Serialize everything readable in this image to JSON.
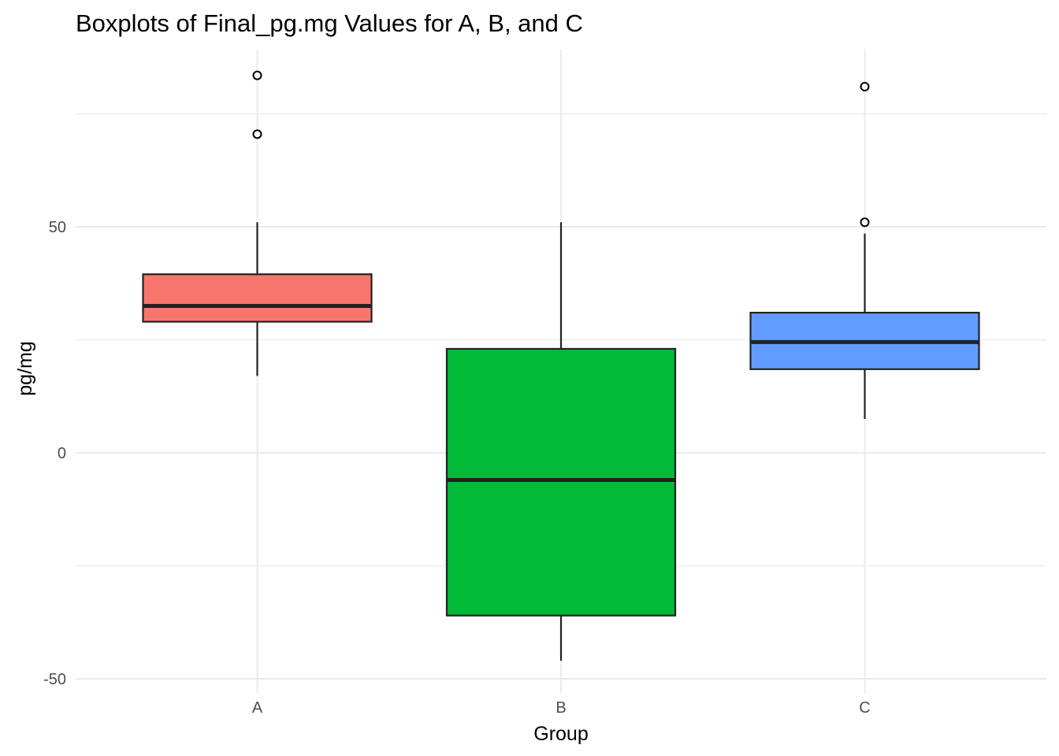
{
  "chart_data": {
    "type": "boxplot",
    "title": "Boxplots of Final_pg.mg Values for A, B, and C",
    "xlabel": "Group",
    "ylabel": "pg/mg",
    "categories": [
      "A",
      "B",
      "C"
    ],
    "y_ticks": [
      {
        "value": -50,
        "label": "-50"
      },
      {
        "value": 0,
        "label": "0"
      },
      {
        "value": 50,
        "label": "50"
      }
    ],
    "ylim": [
      -52,
      89
    ],
    "grid": true,
    "legend": "none",
    "boxes": [
      {
        "group": "A",
        "color": "#F8766D",
        "whisker_low": 17,
        "q1": 29,
        "median": 32.5,
        "q3": 39.5,
        "whisker_high": 51,
        "outliers": [
          70.5,
          83.5
        ]
      },
      {
        "group": "B",
        "color": "#00BA38",
        "whisker_low": -46,
        "q1": -36,
        "median": -6,
        "q3": 23,
        "whisker_high": 51,
        "outliers": []
      },
      {
        "group": "C",
        "color": "#619CFF",
        "whisker_low": 7.5,
        "q1": 18.5,
        "median": 24.5,
        "q3": 31,
        "whisker_high": 48.5,
        "outliers": [
          51,
          81
        ]
      }
    ]
  }
}
